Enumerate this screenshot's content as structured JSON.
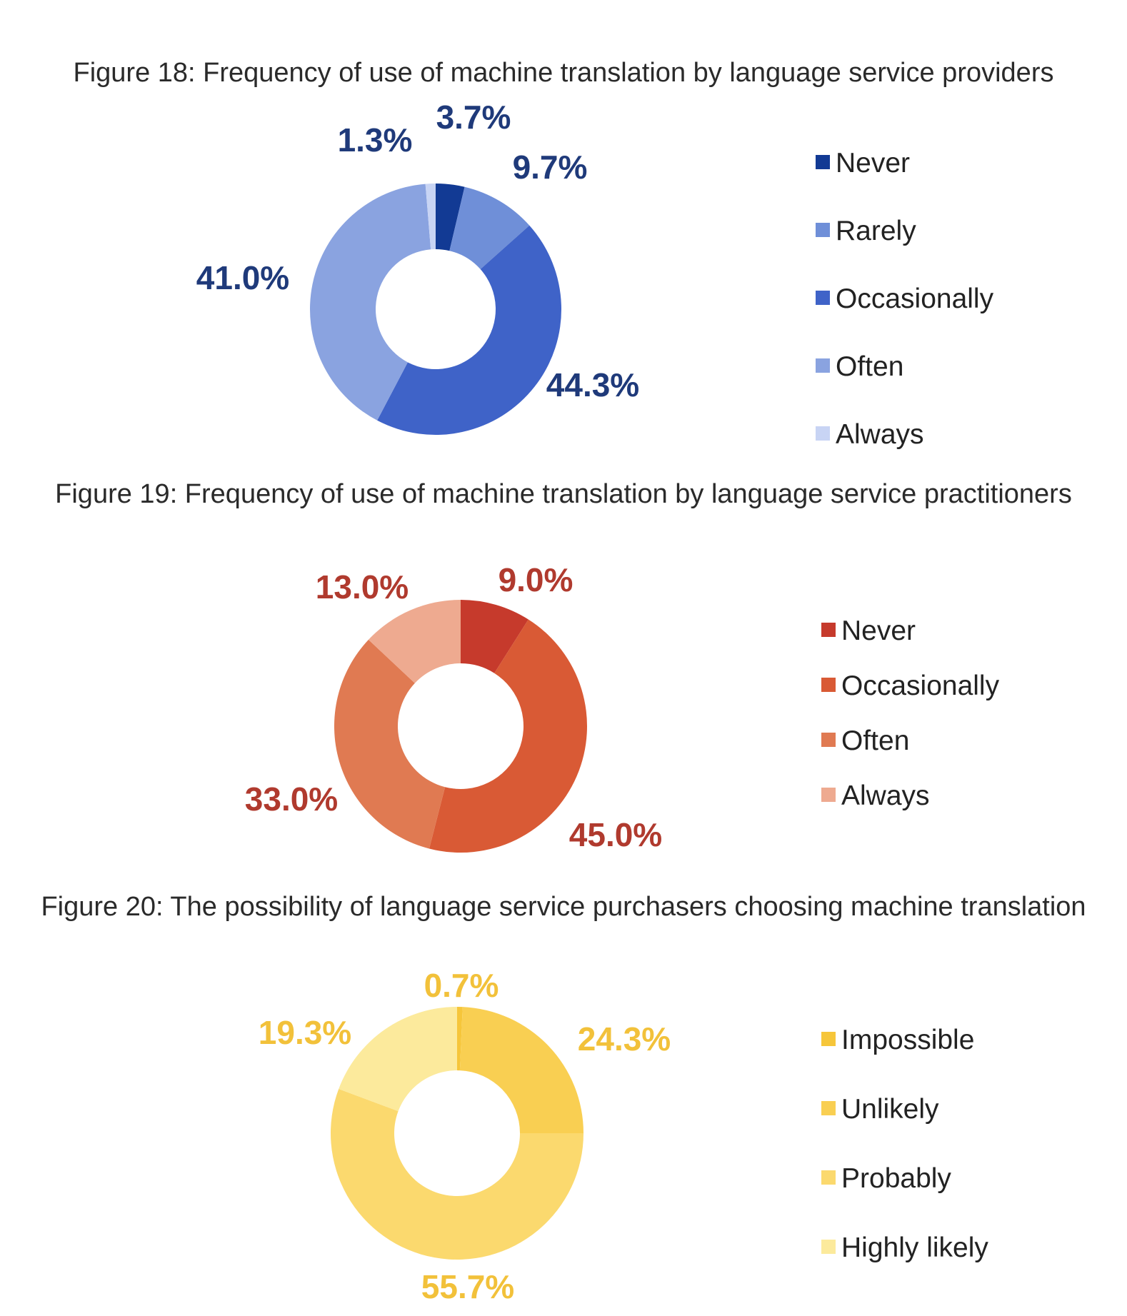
{
  "chart_data": [
    {
      "type": "pie",
      "title": "Figure 18: Frequency of use of machine translation by language service providers",
      "label_color": "#1f3a7a",
      "categories": [
        "Never",
        "Rarely",
        "Occasionally",
        "Often",
        "Always"
      ],
      "values": [
        3.7,
        9.7,
        44.3,
        41.0,
        1.3
      ],
      "labels": [
        "3.7%",
        "9.7%",
        "44.3%",
        "41.0%",
        "1.3%"
      ],
      "colors": [
        "#123a94",
        "#6f8fd8",
        "#3f63c8",
        "#8aa3e0",
        "#c8d4f4"
      ],
      "legend": "right",
      "donut": true
    },
    {
      "type": "pie",
      "title": "Figure 19: Frequency of use of machine translation by language service practitioners",
      "label_color": "#b03a2e",
      "categories": [
        "Never",
        "Occasionally",
        "Often",
        "Always"
      ],
      "values": [
        9.0,
        45.0,
        33.0,
        13.0
      ],
      "labels": [
        "9.0%",
        "45.0%",
        "33.0%",
        "13.0%"
      ],
      "colors": [
        "#c63a2c",
        "#d95a35",
        "#e07a52",
        "#eeaa90"
      ],
      "legend": "right",
      "donut": true
    },
    {
      "type": "pie",
      "title": "Figure 20: The possibility of language service purchasers choosing machine translation",
      "label_color": "#f2c13a",
      "categories": [
        "Impossible",
        "Unlikely",
        "Probably",
        "Highly likely"
      ],
      "values": [
        0.7,
        24.3,
        55.7,
        19.3
      ],
      "labels": [
        "0.7%",
        "24.3%",
        "55.7%",
        "19.3%"
      ],
      "colors": [
        "#f6c63a",
        "#f9cf52",
        "#fbd96e",
        "#fcea9c"
      ],
      "legend": "right",
      "donut": true
    }
  ]
}
